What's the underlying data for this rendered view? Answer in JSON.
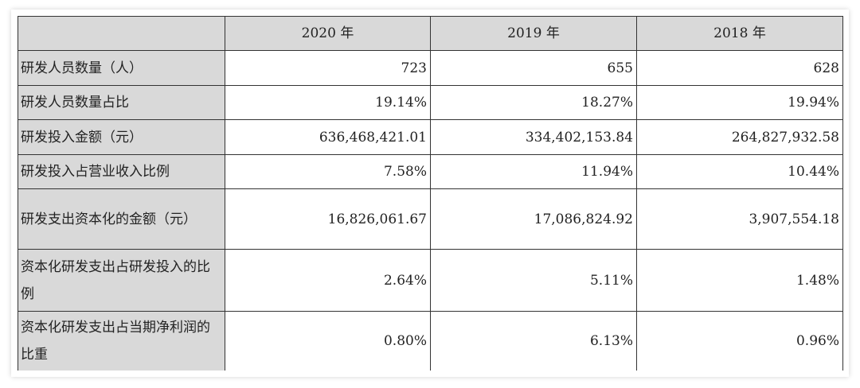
{
  "table": {
    "headers": [
      "",
      "2020 年",
      "2019 年",
      "2018 年"
    ],
    "rows": [
      {
        "label": "研发人员数量（人）",
        "values": [
          "723",
          "655",
          "628"
        ]
      },
      {
        "label": "研发人员数量占比",
        "values": [
          "19.14%",
          "18.27%",
          "19.94%"
        ]
      },
      {
        "label": "研发投入金额（元）",
        "values": [
          "636,468,421.01",
          "334,402,153.84",
          "264,827,932.58"
        ]
      },
      {
        "label": "研发投入占营业收入比例",
        "values": [
          "7.58%",
          "11.94%",
          "10.44%"
        ]
      },
      {
        "label": "研发支出资本化的金额（元）",
        "values": [
          "16,826,061.67",
          "17,086,824.92",
          "3,907,554.18"
        ]
      },
      {
        "label": "资本化研发支出占研发投入的比例",
        "values": [
          "2.64%",
          "5.11%",
          "1.48%"
        ]
      },
      {
        "label": "资本化研发支出占当期净利润的比重",
        "values": [
          "0.80%",
          "6.13%",
          "0.96%"
        ]
      }
    ]
  }
}
